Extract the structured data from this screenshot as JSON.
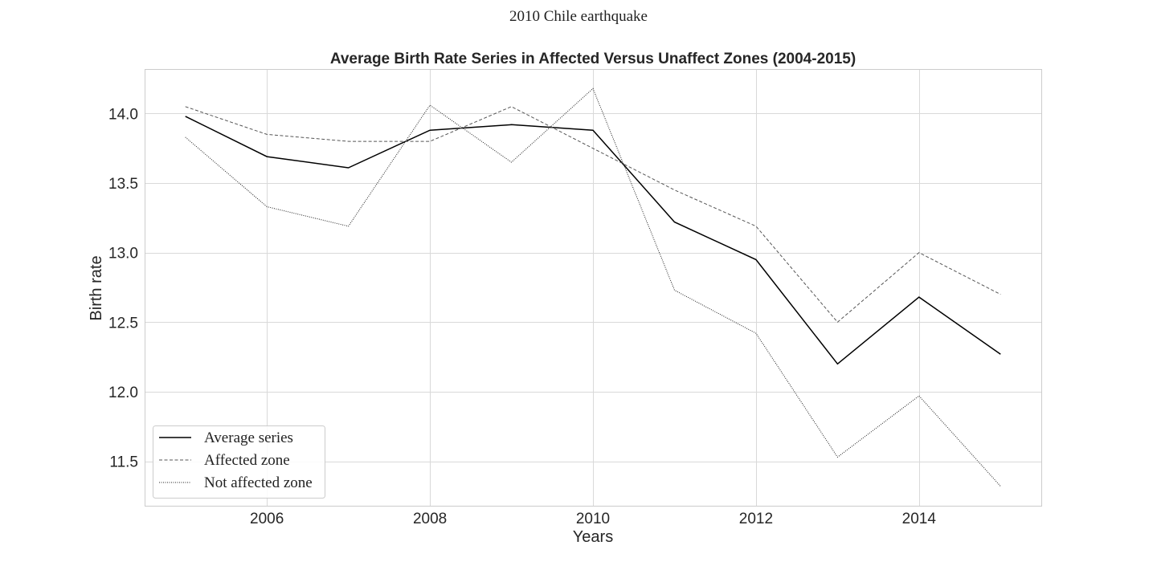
{
  "figure": {
    "suptitle": "2010 Chile earthquake"
  },
  "chart_data": {
    "type": "line",
    "title": "Average Birth Rate Series in Affected Versus Unaffect Zones (2004-2015)",
    "xlabel": "Years",
    "ylabel": "Birth rate",
    "xlim": [
      2004.5,
      2015.5
    ],
    "ylim": [
      11.18,
      14.32
    ],
    "xticks": [
      2006,
      2008,
      2010,
      2012,
      2014
    ],
    "yticks": [
      11.5,
      12.0,
      12.5,
      13.0,
      13.5,
      14.0
    ],
    "ytick_labels": [
      "11.5",
      "12.0",
      "12.5",
      "13.0",
      "13.5",
      "14.0"
    ],
    "grid": true,
    "legend_position": "lower-left",
    "x": [
      2005,
      2006,
      2007,
      2008,
      2009,
      2010,
      2011,
      2012,
      2013,
      2014,
      2015
    ],
    "series": [
      {
        "name": "Average series",
        "style": "solid",
        "color": "#000000",
        "values": [
          13.98,
          13.69,
          13.61,
          13.88,
          13.92,
          13.88,
          13.22,
          12.95,
          12.2,
          12.68,
          12.27
        ]
      },
      {
        "name": "Affected zone",
        "style": "dashed",
        "color": "#555555",
        "values": [
          14.05,
          13.85,
          13.8,
          13.8,
          14.05,
          13.75,
          13.45,
          13.19,
          12.5,
          13.0,
          12.7
        ]
      },
      {
        "name": "Not affected zone",
        "style": "dotted",
        "color": "#222222",
        "values": [
          13.83,
          13.33,
          13.19,
          14.06,
          13.65,
          14.18,
          12.73,
          12.42,
          11.53,
          11.97,
          11.32
        ]
      }
    ]
  }
}
